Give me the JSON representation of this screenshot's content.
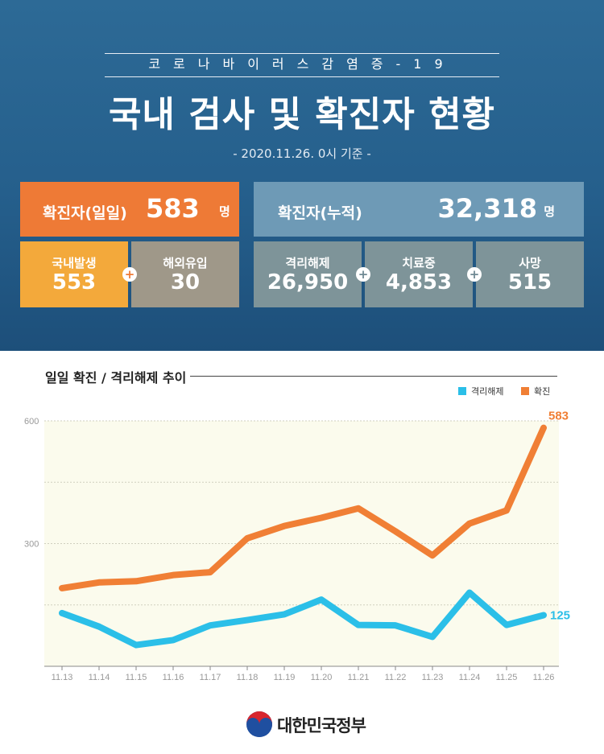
{
  "header": {
    "subtitle": "코로나바이러스감염증-19",
    "title": "국내 검사 및 확진자 현황",
    "date": "- 2020.11.26. 0시 기준 -"
  },
  "stats": {
    "daily_label": "확진자(일일)",
    "daily_value": "583",
    "cumulative_label": "확진자(누적)",
    "cumulative_value": "32,318",
    "unit": "명",
    "domestic_label": "국내발생",
    "domestic_value": "553",
    "overseas_label": "해외유입",
    "overseas_value": "30",
    "released_label": "격리해제",
    "released_value": "26,950",
    "treatment_label": "치료중",
    "treatment_value": "4,853",
    "death_label": "사망",
    "death_value": "515",
    "plus": "+"
  },
  "colors": {
    "confirmed": "#f07f35",
    "released": "#2bbfe8",
    "plot_bg": "#fbfbed"
  },
  "chart_data": {
    "type": "line",
    "title": "일일 확진 / 격리해제 추이",
    "categories": [
      "11.13",
      "11.14",
      "11.15",
      "11.16",
      "11.17",
      "11.18",
      "11.19",
      "11.20",
      "11.21",
      "11.22",
      "11.23",
      "11.24",
      "11.25",
      "11.26"
    ],
    "series": [
      {
        "name": "격리해제",
        "color": "#2bbfe8",
        "values": [
          130,
          97,
          52,
          64,
          100,
          113,
          127,
          163,
          101,
          100,
          72,
          180,
          101,
          125
        ]
      },
      {
        "name": "확진",
        "color": "#f07f35",
        "values": [
          191,
          205,
          208,
          223,
          230,
          313,
          343,
          363,
          386,
          330,
          271,
          349,
          381,
          583
        ]
      }
    ],
    "yticks": [
      300,
      600
    ],
    "ylim": [
      0,
      600
    ],
    "grid": true,
    "legend": "top-right",
    "end_labels": [
      "583",
      "125"
    ]
  },
  "footer": {
    "org": "대한민국정부"
  }
}
